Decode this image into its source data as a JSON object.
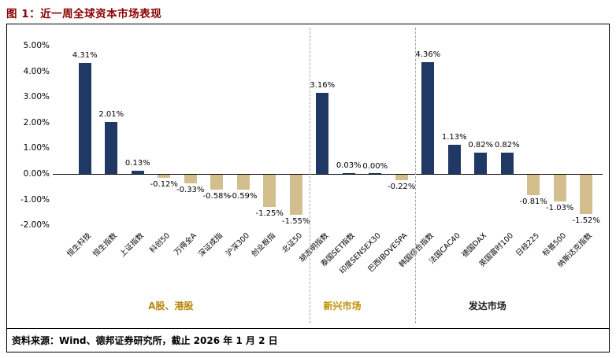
{
  "header": {
    "title": "图 1：近一周全球资本市场表现",
    "title_color": "#8b0000"
  },
  "footer": {
    "source": "资料来源：Wind、德邦证券研究所，截止 2026 年 1 月 2 日"
  },
  "chart_data": {
    "type": "bar",
    "title": "近一周全球资本市场表现",
    "xlabel": "",
    "ylabel": "",
    "unit": "%",
    "ylim": [
      -2.0,
      5.0
    ],
    "grid": false,
    "legend": "none",
    "bar_positive_color": "#1f3864",
    "bar_negative_color": "#d3bf8e",
    "yticks": [
      5,
      4,
      3,
      2,
      1,
      0,
      -1,
      -2
    ],
    "ytick_labels": [
      "5.00%",
      "4.00%",
      "3.00%",
      "2.00%",
      "1.00%",
      "0.00%",
      "-1.00%",
      "-2.00%"
    ],
    "groups": [
      {
        "label": "A股、港股",
        "label_color": "#b8860b",
        "categories": [
          "恒生科技",
          "恒生指数",
          "上证指数",
          "科创50",
          "万得全A",
          "深证成指",
          "沪深300",
          "创业板指",
          "北证50"
        ],
        "values": [
          4.31,
          2.01,
          0.13,
          -0.12,
          -0.33,
          -0.58,
          -0.59,
          -1.25,
          -1.55
        ],
        "value_labels": [
          "4.31%",
          "2.01%",
          "0.13%",
          "-0.12%",
          "-0.33%",
          "-0.58%",
          "-0.59%",
          "-1.25%",
          "-1.55%"
        ]
      },
      {
        "label": "新兴市场",
        "label_color": "#bf9000",
        "categories": [
          "胡志明指数",
          "泰国SET指数",
          "印度SENSEX30",
          "巴西IBOVESPA"
        ],
        "values": [
          3.16,
          0.03,
          0.0,
          -0.22
        ],
        "value_labels": [
          "3.16%",
          "0.03%",
          "0.00%",
          "-0.22%"
        ]
      },
      {
        "label": "发达市场",
        "label_color": "#1a1a1a",
        "categories": [
          "韩国综合指数",
          "法国CAC40",
          "德国DAX",
          "英国富时100",
          "日经225",
          "标普500",
          "纳斯达克指数"
        ],
        "values": [
          4.36,
          1.13,
          0.82,
          0.82,
          -0.81,
          -1.03,
          -1.52
        ],
        "value_labels": [
          "4.36%",
          "1.13%",
          "0.82%",
          "0.82%",
          "-0.81%",
          "-1.03%",
          "-1.52%"
        ]
      }
    ]
  }
}
